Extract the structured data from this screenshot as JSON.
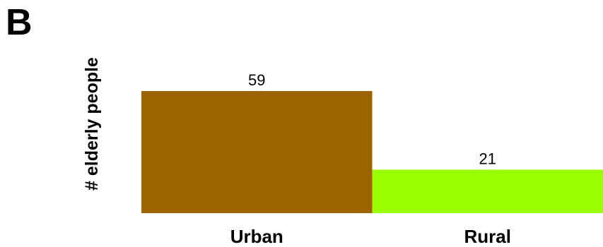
{
  "panel_label": "B",
  "chart_data": {
    "type": "bar",
    "title": "",
    "xlabel": "",
    "ylabel": "# elderly people",
    "categories": [
      "Urban",
      "Rural"
    ],
    "values": [
      59,
      21
    ],
    "data_labels": [
      "59",
      "21"
    ],
    "colors": [
      "#9b6400",
      "#99ff00"
    ],
    "ylim": [
      0,
      59
    ],
    "grid": false,
    "legend": "none"
  }
}
